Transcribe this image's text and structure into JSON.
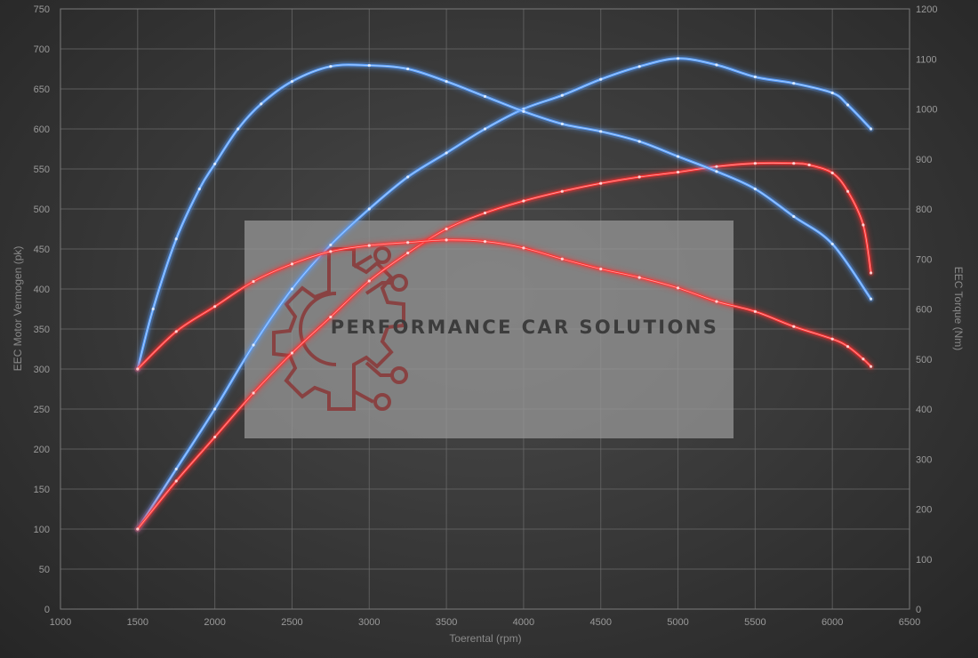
{
  "watermark": {
    "text": "PERFORMANCE CAR SOLUTIONS",
    "logo_color": "#8b2e2e"
  },
  "chart_data": {
    "type": "line",
    "title": "",
    "xlabel": "Toerental (rpm)",
    "ylabel": "EEC Motor Vermogen (pk)",
    "y2label": "EEC Torque (Nm)",
    "xlim": [
      1000,
      6500
    ],
    "ylim": [
      0,
      750
    ],
    "y2lim": [
      0,
      1200
    ],
    "x_ticks": [
      1000,
      1500,
      2000,
      2500,
      3000,
      3500,
      4000,
      4500,
      5000,
      5500,
      6000,
      6500
    ],
    "y_ticks": [
      0,
      50,
      100,
      150,
      200,
      250,
      300,
      350,
      400,
      450,
      500,
      550,
      600,
      650,
      700,
      750
    ],
    "y2_ticks": [
      0,
      100,
      200,
      300,
      400,
      500,
      600,
      700,
      800,
      900,
      1000,
      1100,
      1200
    ],
    "grid": true,
    "legend": "none",
    "colors": {
      "tuned": "#5aa0ff",
      "stock": "#ff3333"
    },
    "series": [
      {
        "axis": "left",
        "color": "#5aa0ff",
        "x": [
          1500,
          1750,
          2000,
          2250,
          2500,
          2750,
          3000,
          3250,
          3500,
          3750,
          4000,
          4250,
          4500,
          4750,
          5000,
          5250,
          5500,
          5750,
          6000,
          6100,
          6250
        ],
        "values": [
          100,
          175,
          250,
          330,
          400,
          455,
          500,
          540,
          570,
          600,
          625,
          642,
          662,
          678,
          688,
          680,
          665,
          657,
          645,
          630,
          600
        ]
      },
      {
        "axis": "left",
        "color": "#ff3333",
        "x": [
          1500,
          1750,
          2000,
          2250,
          2500,
          2750,
          3000,
          3250,
          3500,
          3750,
          4000,
          4250,
          4500,
          4750,
          5000,
          5250,
          5500,
          5750,
          5850,
          6000,
          6100,
          6200,
          6250
        ],
        "values": [
          100,
          160,
          215,
          270,
          320,
          365,
          410,
          445,
          475,
          495,
          510,
          522,
          532,
          540,
          546,
          553,
          557,
          557,
          555,
          545,
          522,
          480,
          420
        ]
      },
      {
        "axis": "right",
        "color": "#5aa0ff",
        "x": [
          1500,
          1600,
          1750,
          1900,
          2000,
          2150,
          2300,
          2500,
          2750,
          3000,
          3250,
          3500,
          3750,
          4000,
          4250,
          4500,
          4750,
          5000,
          5250,
          5500,
          5750,
          6000,
          6250
        ],
        "values": [
          480,
          600,
          740,
          840,
          890,
          960,
          1010,
          1055,
          1085,
          1087,
          1080,
          1055,
          1025,
          995,
          970,
          955,
          935,
          905,
          875,
          840,
          785,
          730,
          620
        ]
      },
      {
        "axis": "right",
        "color": "#ff3333",
        "x": [
          1500,
          1750,
          2000,
          2250,
          2500,
          2750,
          3000,
          3250,
          3500,
          3750,
          4000,
          4250,
          4500,
          4750,
          5000,
          5250,
          5500,
          5750,
          6000,
          6100,
          6200,
          6250
        ],
        "values": [
          480,
          555,
          605,
          655,
          690,
          715,
          727,
          733,
          738,
          735,
          722,
          700,
          680,
          663,
          642,
          615,
          595,
          565,
          540,
          525,
          500,
          485
        ]
      }
    ]
  }
}
